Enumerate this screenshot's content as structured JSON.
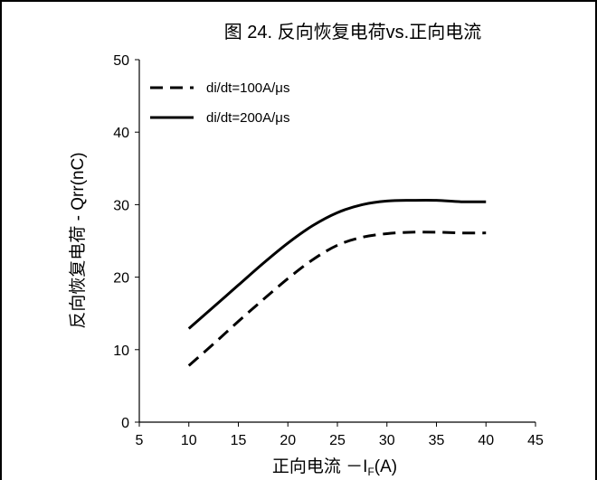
{
  "chart_data": {
    "type": "line",
    "title": "图 24. 反向恢复电荷vs.正向电流",
    "xlabel_main": "正向电流 －I",
    "xlabel_sub": "F",
    "xlabel_unit": "(A)",
    "ylabel": "反向恢复电荷 - Qrr(nC)",
    "xlim": [
      5,
      45
    ],
    "ylim": [
      0,
      50
    ],
    "xticks": [
      5,
      10,
      15,
      20,
      25,
      30,
      35,
      40,
      45
    ],
    "yticks": [
      0,
      10,
      20,
      30,
      40,
      50
    ],
    "grid": false,
    "legend": "top-left",
    "series": [
      {
        "name": "di/dt=100A/μs",
        "style": "dashed",
        "color": "#000000",
        "x": [
          10,
          12.5,
          15,
          17.5,
          20,
          22.5,
          25,
          27.5,
          30,
          32.5,
          35,
          37.5,
          40
        ],
        "y": [
          7.8,
          10.8,
          13.9,
          16.9,
          19.8,
          22.4,
          24.4,
          25.5,
          26.0,
          26.2,
          26.2,
          26.1,
          26.1
        ]
      },
      {
        "name": "di/dt=200A/μs",
        "style": "solid",
        "color": "#000000",
        "x": [
          10,
          12.5,
          15,
          17.5,
          20,
          22.5,
          25,
          27.5,
          30,
          32.5,
          35,
          37.5,
          40
        ],
        "y": [
          12.9,
          15.9,
          18.9,
          21.9,
          24.7,
          27.1,
          28.9,
          30.0,
          30.5,
          30.6,
          30.6,
          30.4,
          30.4
        ]
      }
    ]
  }
}
